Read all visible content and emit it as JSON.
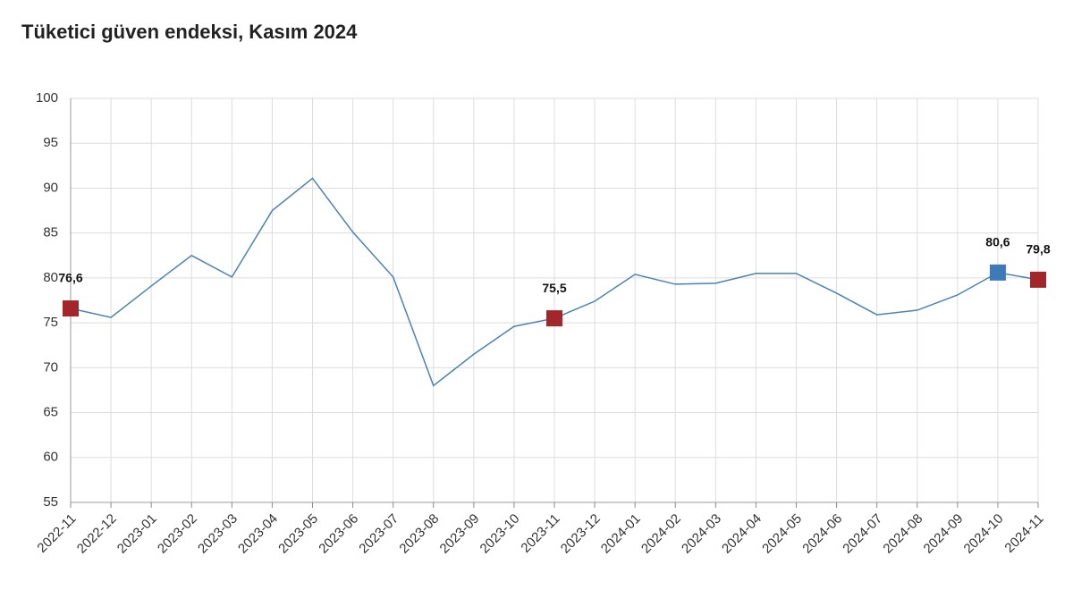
{
  "chart_data": {
    "type": "line",
    "title": "Tüketici güven endeksi, Kasım 2024",
    "categories": [
      "2022-11",
      "2022-12",
      "2023-01",
      "2023-02",
      "2023-03",
      "2023-04",
      "2023-05",
      "2023-06",
      "2023-07",
      "2023-08",
      "2023-09",
      "2023-10",
      "2023-11",
      "2023-12",
      "2024-01",
      "2024-02",
      "2024-03",
      "2024-04",
      "2024-05",
      "2024-06",
      "2024-07",
      "2024-08",
      "2024-09",
      "2024-10",
      "2024-11"
    ],
    "values": [
      76.6,
      75.6,
      79.1,
      82.5,
      80.1,
      87.5,
      91.1,
      85.1,
      80.1,
      68.0,
      71.5,
      74.6,
      75.5,
      77.4,
      80.4,
      79.3,
      79.4,
      80.5,
      80.5,
      78.3,
      75.9,
      76.4,
      78.1,
      80.6,
      79.8
    ],
    "value_labels": [
      "76,6",
      null,
      null,
      null,
      null,
      null,
      null,
      null,
      null,
      null,
      null,
      null,
      "75,5",
      null,
      null,
      null,
      null,
      null,
      null,
      null,
      null,
      null,
      null,
      "80,6",
      "79,8"
    ],
    "marker_colors": [
      "#a3262a",
      null,
      null,
      null,
      null,
      null,
      null,
      null,
      null,
      null,
      null,
      null,
      "#a3262a",
      null,
      null,
      null,
      null,
      null,
      null,
      null,
      null,
      null,
      null,
      "#3c7ab8",
      "#a3262a"
    ],
    "color": "#4a82b8",
    "ylim": [
      55,
      100
    ],
    "yticks": [
      55,
      60,
      65,
      70,
      75,
      80,
      85,
      90,
      95,
      100
    ],
    "grid": true
  }
}
